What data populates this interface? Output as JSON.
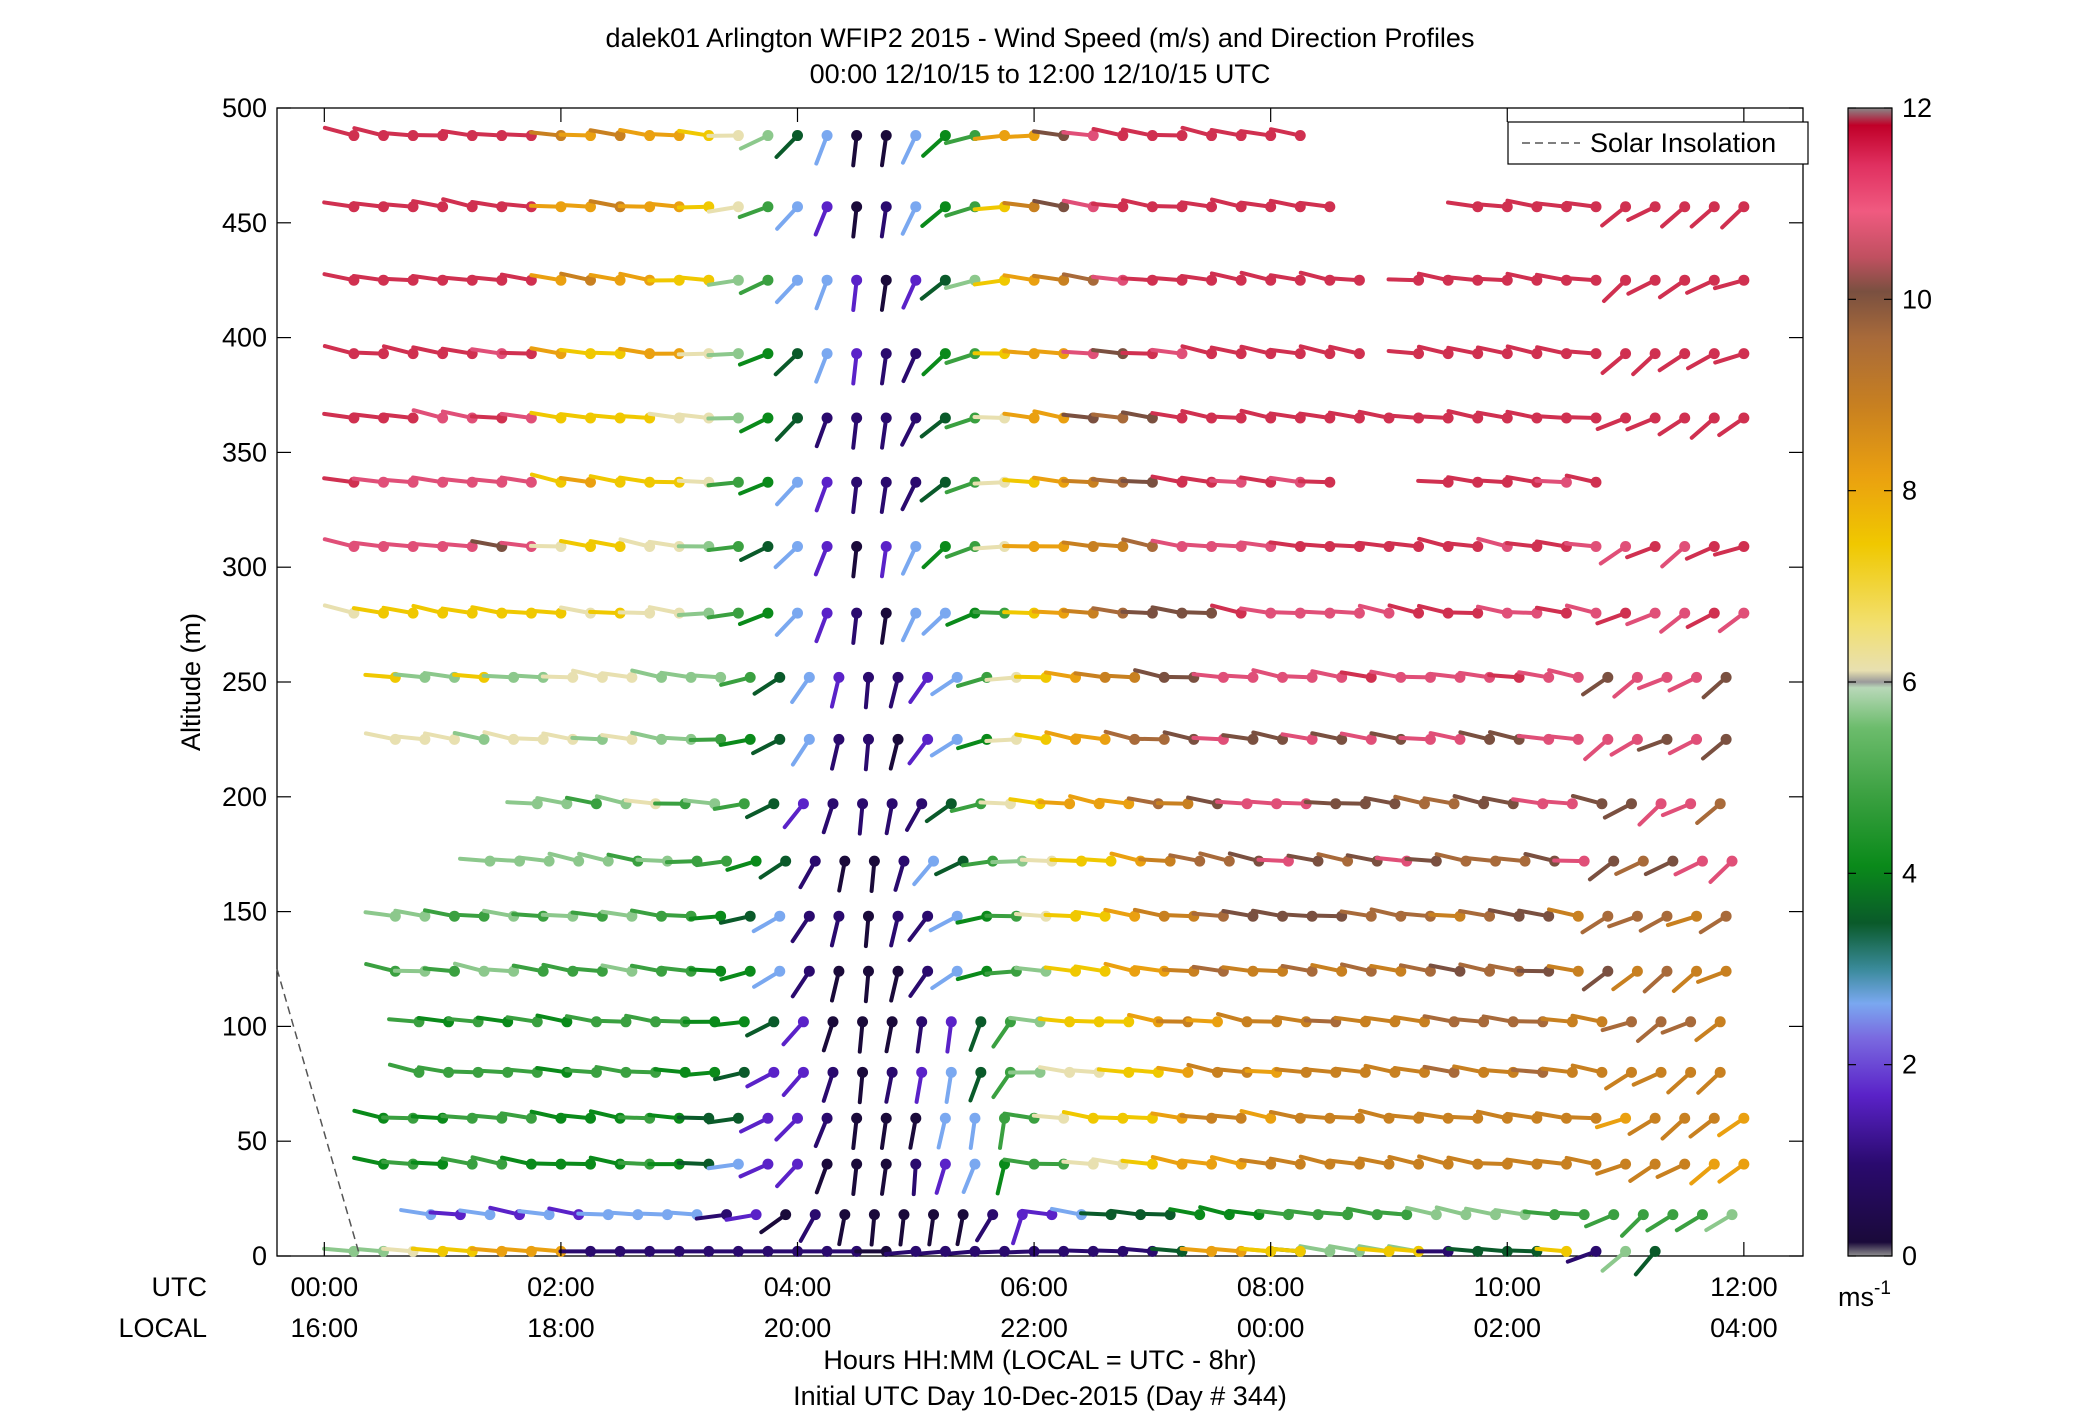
{
  "chart_data": {
    "type": "wind-barb-profile",
    "title": "dalek01 Arlington WFIP2 2015 - Wind Speed (m/s) and Direction Profiles",
    "subtitle": "00:00 12/10/15 to 12:00 12/10/15  UTC",
    "ylabel": "Altitude (m)",
    "xlabel": "Hours HH:MM  (LOCAL = UTC - 8hr)",
    "xlabel2": "Initial UTC Day 10-Dec-2015 (Day # 344)",
    "row_utc": "UTC",
    "row_local": "LOCAL",
    "ylim": [
      0,
      500
    ],
    "xlim_hours": [
      -0.4,
      12.5
    ],
    "yticks": [
      0,
      50,
      100,
      150,
      200,
      250,
      300,
      350,
      400,
      450,
      500
    ],
    "xticks_hours": [
      0,
      2,
      4,
      6,
      8,
      10,
      12
    ],
    "xtick_labels_utc": [
      "00:00",
      "02:00",
      "04:00",
      "06:00",
      "08:00",
      "10:00",
      "12:00"
    ],
    "xtick_labels_local": [
      "16:00",
      "18:00",
      "20:00",
      "22:00",
      "00:00",
      "02:00",
      "04:00"
    ],
    "legend": {
      "label": "Solar Insolation",
      "position": "top-right"
    },
    "colorbar": {
      "range": [
        0,
        12
      ],
      "ticks": [
        0,
        2,
        4,
        6,
        8,
        10,
        12
      ],
      "unit_base": "ms",
      "unit_exp": "-1"
    },
    "solar_insolation_line": [
      [
        -0.4,
        125
      ],
      [
        0.3,
        0
      ]
    ],
    "altitudes": [
      2,
      18,
      40,
      60,
      80,
      102,
      124,
      148,
      172,
      197,
      225,
      252,
      280,
      309,
      337,
      365,
      393,
      425,
      457,
      488
    ],
    "time_step_hours": 0.25,
    "rows": [
      {
        "alt": 2,
        "t0": 0.25,
        "speeds": [
          5.5,
          5.5,
          6.2,
          7.5,
          7.5,
          8,
          8,
          8,
          1.5,
          1.5,
          1.5,
          1.5,
          1.5,
          1,
          1,
          1,
          1,
          1,
          0.8,
          1,
          1,
          1.2,
          1,
          1,
          1.2,
          1.5,
          1.5,
          1.5,
          3.5,
          8,
          8,
          8,
          3.5,
          5.5,
          5.5,
          5.5,
          5.5
        ],
        "dirs": [
          275,
          275,
          275,
          275,
          275,
          275,
          275,
          275,
          270,
          270,
          270,
          270,
          270,
          270,
          270,
          270,
          270,
          270,
          270,
          265,
          265,
          265,
          268,
          268,
          270,
          272,
          272,
          275,
          275,
          275,
          275,
          275,
          275,
          280,
          280,
          280,
          280
        ]
      },
      {
        "alt": 2,
        "t0": 8.0,
        "speeds": [
          7,
          7,
          0,
          0,
          7.5,
          7.5,
          1.5,
          3.5,
          3.5,
          3,
          7,
          1.5,
          6,
          3.5
        ],
        "dirs": [
          275,
          275,
          0,
          0,
          275,
          275,
          270,
          275,
          275,
          272,
          275,
          250,
          230,
          220
        ]
      }
    ]
  }
}
